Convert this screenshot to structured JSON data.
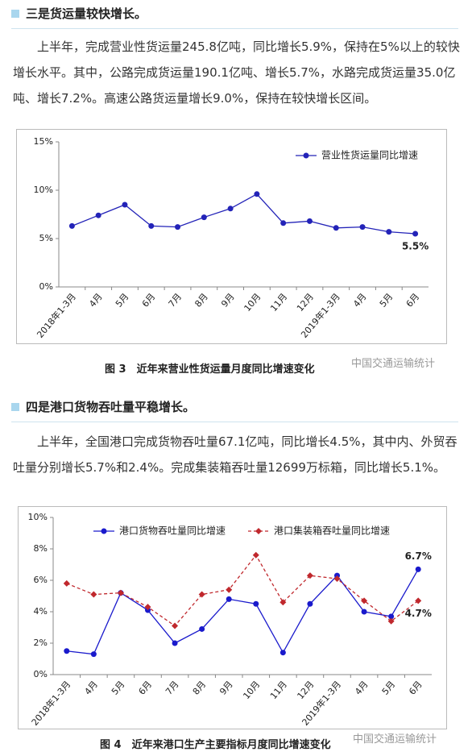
{
  "section3": {
    "heading": "三是货运量较快增长。",
    "paragraph": "上半年，完成营业性货运量245.8亿吨，同比增长5.9%，保持在5%以上的较快增长水平。其中，公路完成货运量190.1亿吨、增长5.7%，水路完成货运量35.0亿吨、增长7.2%。高速公路货运量增长9.0%，保持在较快增长区间。",
    "caption": "图 3　近年来营业性货运量月度同比增速变化",
    "watermark": "中国交通运输统计"
  },
  "section4": {
    "heading": "四是港口货物吞吐量平稳增长。",
    "paragraph": "上半年，全国港口完成货物吞吐量67.1亿吨，同比增长4.5%，其中内、外贸吞吐量分别增长5.7%和2.4%。完成集装箱吞吐量12699万标箱，同比增长5.1%。",
    "caption": "图 4　近年来港口生产主要指标月度同比增速变化",
    "watermark": "中国交通运输统计"
  },
  "chart_data": [
    {
      "type": "line",
      "categories": [
        "2018年1-3月",
        "4月",
        "5月",
        "6月",
        "7月",
        "8月",
        "9月",
        "10月",
        "11月",
        "12月",
        "2019年1-3月",
        "4月",
        "5月",
        "6月"
      ],
      "series": [
        {
          "name": "营业性货运量同比增速",
          "color": "#2323b8",
          "marker": "circle",
          "line_style": "solid",
          "values": [
            6.3,
            7.4,
            8.5,
            6.3,
            6.2,
            7.2,
            8.1,
            9.6,
            6.6,
            6.8,
            6.1,
            6.2,
            5.7,
            5.5
          ],
          "value_labels": [
            null,
            null,
            null,
            null,
            null,
            null,
            null,
            null,
            null,
            null,
            null,
            null,
            null,
            "5.5%"
          ]
        }
      ],
      "ylim": [
        0,
        15
      ],
      "yticks": [
        {
          "value": 0,
          "label": "0%"
        },
        {
          "value": 5,
          "label": "5%"
        },
        {
          "value": 10,
          "label": "10%"
        },
        {
          "value": 15,
          "label": "15%"
        }
      ],
      "grid": false,
      "legend": "upper right"
    },
    {
      "type": "line",
      "categories": [
        "2018年1-3月",
        "4月",
        "5月",
        "6月",
        "7月",
        "8月",
        "9月",
        "10月",
        "11月",
        "12月",
        "2019年1-3月",
        "4月",
        "5月",
        "6月"
      ],
      "series": [
        {
          "name": "港口货物吞吐量同比增速",
          "color": "#1a1acc",
          "marker": "circle",
          "line_style": "solid",
          "values": [
            1.5,
            1.3,
            5.2,
            4.1,
            2.0,
            2.9,
            4.8,
            4.5,
            1.4,
            4.5,
            6.3,
            4.0,
            3.7,
            6.7
          ],
          "value_labels": [
            null,
            null,
            null,
            null,
            null,
            null,
            null,
            null,
            null,
            null,
            null,
            null,
            null,
            "6.7%"
          ]
        },
        {
          "name": "港口集装箱吞吐量同比增速",
          "color": "#c0282d",
          "marker": "diamond",
          "line_style": "dashed",
          "values": [
            5.8,
            5.1,
            5.2,
            4.3,
            3.1,
            5.1,
            5.4,
            7.6,
            4.6,
            6.3,
            6.1,
            4.7,
            3.4,
            4.7
          ],
          "value_labels": [
            null,
            null,
            null,
            null,
            null,
            null,
            null,
            null,
            null,
            null,
            null,
            null,
            null,
            "4.7%"
          ]
        }
      ],
      "ylim": [
        0,
        10
      ],
      "yticks": [
        {
          "value": 0,
          "label": "0%"
        },
        {
          "value": 2,
          "label": "2%"
        },
        {
          "value": 4,
          "label": "4%"
        },
        {
          "value": 6,
          "label": "6%"
        },
        {
          "value": 8,
          "label": "8%"
        },
        {
          "value": 10,
          "label": "10%"
        }
      ],
      "grid": false,
      "legend": "upper left"
    }
  ]
}
